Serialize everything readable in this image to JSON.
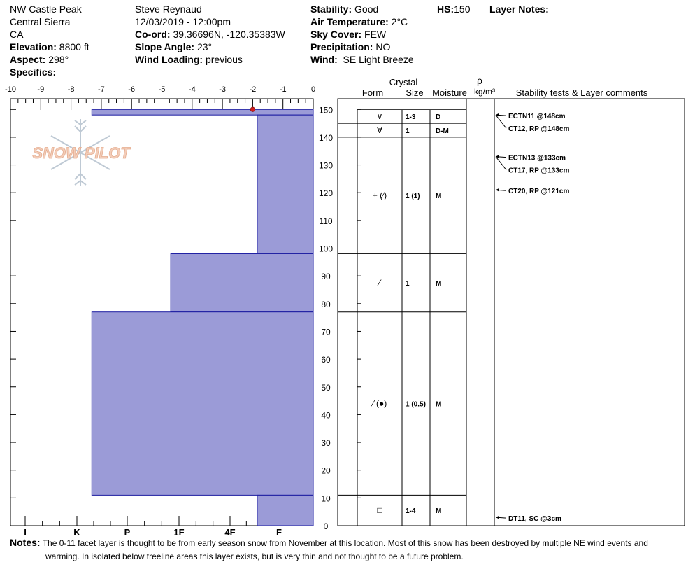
{
  "header": {
    "location": "NW Castle Peak",
    "range": "Central Sierra",
    "state": "CA",
    "elevation_label": "Elevation:",
    "elevation": "8800 ft",
    "aspect_label": "Aspect:",
    "aspect": "298°",
    "specifics_label": "Specifics:",
    "observer": "Steve Reynaud",
    "datetime": "12/03/2019 - 12:00pm",
    "coord_label": "Co-ord:",
    "coord": "39.36696N, -120.35383W",
    "slope_label": "Slope Angle:",
    "slope": "23°",
    "wind_loading_label": "Wind Loading:",
    "wind_loading": "previous",
    "stability_label": "Stability:",
    "stability": "Good",
    "air_temp_label": "Air Temperature:",
    "air_temp": "2°C",
    "sky_label": "Sky Cover:",
    "sky": "FEW",
    "precip_label": "Precipitation:",
    "precip": "NO",
    "wind_label": "Wind:",
    "wind": "SE Light Breeze",
    "hs_label": "HS:",
    "hs": "150",
    "layer_notes_label": "Layer Notes:"
  },
  "logo": {
    "text": "SNOW PILOT"
  },
  "notes": {
    "label": "Notes:",
    "line1": "The 0-11 facet layer is thought to be from early season snow from November at this location.  Most of this snow has been destroyed by multiple NE wind events and",
    "line2": "warming.  In isolated below treeline areas this layer exists, but is very thin and not thought to be a future problem."
  },
  "colors": {
    "hardness_fill": "#9b9bd7",
    "hardness_stroke": "#1a1aa0",
    "temp_dot": "#d21f1f"
  },
  "chart_data": {
    "type": "snow_profile",
    "temp_axis": {
      "ticks": [
        "-10",
        "-9",
        "-8",
        "-7",
        "-6",
        "-5",
        "-4",
        "-3",
        "-2",
        "-1",
        "0"
      ],
      "range": [
        -10,
        0
      ]
    },
    "hardness_axis": {
      "labels": [
        "I",
        "K",
        "P",
        "1F",
        "4F",
        "F"
      ]
    },
    "height_axis": {
      "ticks": [
        "0",
        "10",
        "20",
        "30",
        "40",
        "50",
        "60",
        "70",
        "80",
        "90",
        "100",
        "110",
        "120",
        "130",
        "140",
        "150"
      ],
      "range": [
        0,
        150
      ]
    },
    "hardness_layers": [
      {
        "bottom": 148,
        "top": 150,
        "hardness_1F_scale": 4.35
      },
      {
        "bottom": 98,
        "top": 148,
        "hardness_1F_scale": 1.1
      },
      {
        "bottom": 77,
        "top": 98,
        "hardness_1F_scale": 2.8
      },
      {
        "bottom": 11,
        "top": 77,
        "hardness_1F_scale": 4.35
      },
      {
        "bottom": 0,
        "top": 11,
        "hardness_1F_scale": 1.1
      }
    ],
    "temperature_points": [
      {
        "height": 150,
        "temp": -2
      }
    ],
    "columns": {
      "crystal": "Crystal",
      "form": "Form",
      "size": "Size",
      "moisture": "Moisture",
      "rho": "ρ",
      "density_unit": "kg/m³",
      "comments": "Stability tests & Layer comments"
    },
    "layer_rows": [
      {
        "top": 150,
        "bottom": 145,
        "form": "∨",
        "size": "1-3",
        "moisture": "D"
      },
      {
        "top": 145,
        "bottom": 140,
        "form": "∀",
        "size": "1",
        "moisture": "D-M"
      },
      {
        "top": 140,
        "bottom": 98,
        "form": "+ (⁄)",
        "size": "1 (1)",
        "moisture": "M"
      },
      {
        "top": 98,
        "bottom": 77,
        "form": "⁄",
        "size": "1",
        "moisture": "M"
      },
      {
        "top": 77,
        "bottom": 11,
        "form": "⁄ (●)",
        "size": "1 (0.5)",
        "moisture": "M"
      },
      {
        "top": 11,
        "bottom": 0,
        "form": "□",
        "size": "1-4",
        "moisture": "M"
      }
    ],
    "stability_tests": [
      {
        "text": "ECTN11 @148cm",
        "height": 148
      },
      {
        "text": "CT12, RP @148cm",
        "height": 148
      },
      {
        "text": "ECTN13 @133cm",
        "height": 133
      },
      {
        "text": "CT17, RP @133cm",
        "height": 133
      },
      {
        "text": "CT20, RP @121cm",
        "height": 121
      },
      {
        "text": "DT11, SC @3cm",
        "height": 3
      }
    ]
  }
}
